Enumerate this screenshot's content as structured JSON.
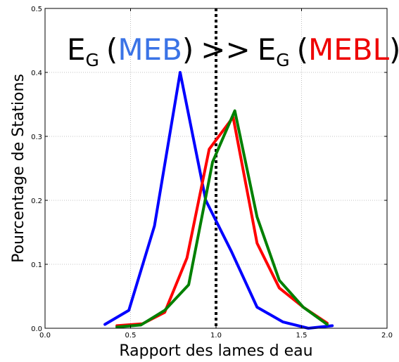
{
  "chart_data": {
    "type": "line",
    "title": {
      "left_symbol": "E",
      "left_subscript": "G",
      "left_open": "(",
      "left_model": "MEB",
      "left_close": ")",
      "operator": ">>",
      "right_symbol": "E",
      "right_subscript": "G",
      "right_open": "(",
      "right_model": "MEBL",
      "right_close": ")"
    },
    "xlabel": "Rapport des lames d eau",
    "ylabel": "Pourcentage de Stations",
    "xlim": [
      0.0,
      2.0
    ],
    "ylim": [
      0.0,
      0.5
    ],
    "xticks": [
      "0.0",
      "0.5",
      "1.0",
      "1.5",
      "2.0"
    ],
    "yticks": [
      "0.0",
      "0.1",
      "0.2",
      "0.3",
      "0.4",
      "0.5"
    ],
    "grid": true,
    "reference_line": {
      "x": 1.0,
      "style": "dotted",
      "color": "#000000"
    },
    "series": [
      {
        "color": "#0000ff",
        "x": [
          0.35,
          0.49,
          0.64,
          0.79,
          0.94,
          1.09,
          1.24,
          1.39,
          1.54,
          1.68
        ],
        "y": [
          0.006,
          0.028,
          0.16,
          0.4,
          0.2,
          0.12,
          0.033,
          0.01,
          0.0,
          0.004
        ]
      },
      {
        "color": "#ff0000",
        "x": [
          0.42,
          0.57,
          0.7,
          0.83,
          0.96,
          1.1,
          1.24,
          1.37,
          1.51,
          1.65
        ],
        "y": [
          0.004,
          0.007,
          0.025,
          0.11,
          0.28,
          0.33,
          0.133,
          0.063,
          0.033,
          0.008
        ]
      },
      {
        "color": "#008000",
        "x": [
          0.42,
          0.56,
          0.7,
          0.84,
          0.98,
          1.11,
          1.24,
          1.37,
          1.51,
          1.65
        ],
        "y": [
          0.002,
          0.005,
          0.028,
          0.068,
          0.26,
          0.34,
          0.174,
          0.075,
          0.033,
          0.006
        ]
      }
    ]
  }
}
